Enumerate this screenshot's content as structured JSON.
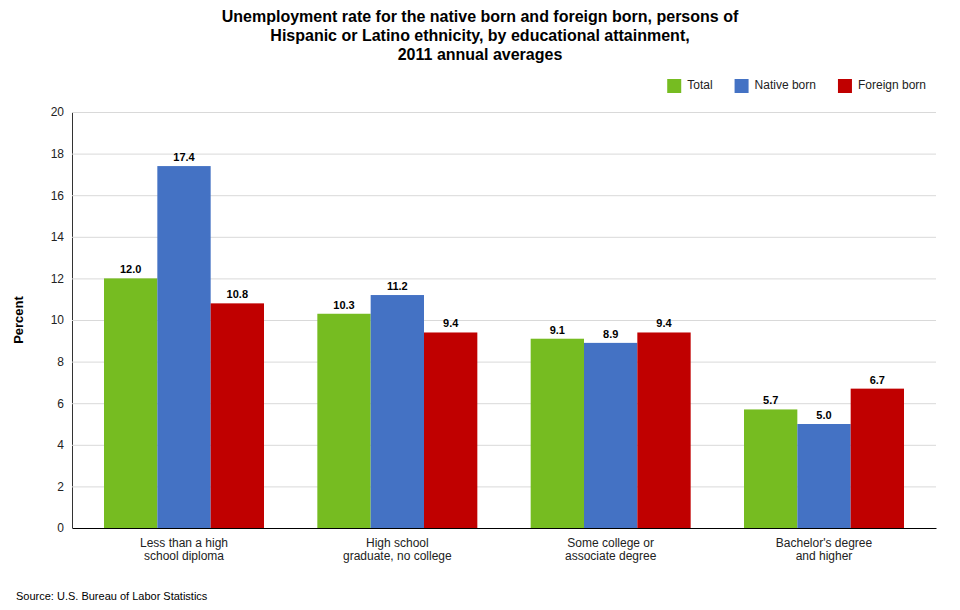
{
  "chart_data": {
    "type": "bar",
    "title": "Unemployment rate for the native born and foreign born, persons of\nHispanic or Latino ethnicity, by educational attainment,\n2011 annual averages",
    "categories": [
      "Less than a high\nschool diploma",
      "High school\ngraduate, no college",
      "Some college or\nassociate degree",
      "Bachelor's degree\nand higher"
    ],
    "series": [
      {
        "name": "Total",
        "color": "#76bc21",
        "values": [
          12.0,
          10.3,
          9.1,
          5.7
        ],
        "value_labels": [
          "12.0",
          "10.3",
          "9.1",
          "5.7"
        ]
      },
      {
        "name": "Native born",
        "color": "#4472c4",
        "values": [
          17.4,
          11.2,
          8.9,
          5.0
        ],
        "value_labels": [
          "17.4",
          "11.2",
          "8.9",
          "5.0"
        ]
      },
      {
        "name": "Foreign born",
        "color": "#c00000",
        "values": [
          10.8,
          9.4,
          9.4,
          6.7
        ],
        "value_labels": [
          "10.8",
          "9.4",
          "9.4",
          "6.7"
        ]
      }
    ],
    "ylabel": "Percent",
    "ylim": [
      0,
      20
    ],
    "yticks": [
      0,
      2,
      4,
      6,
      8,
      10,
      12,
      14,
      16,
      18,
      20
    ],
    "grid": true,
    "legend": "upper right",
    "data_labels": true,
    "annotations": [
      "Source: U.S. Bureau of Labor Statistics"
    ]
  }
}
